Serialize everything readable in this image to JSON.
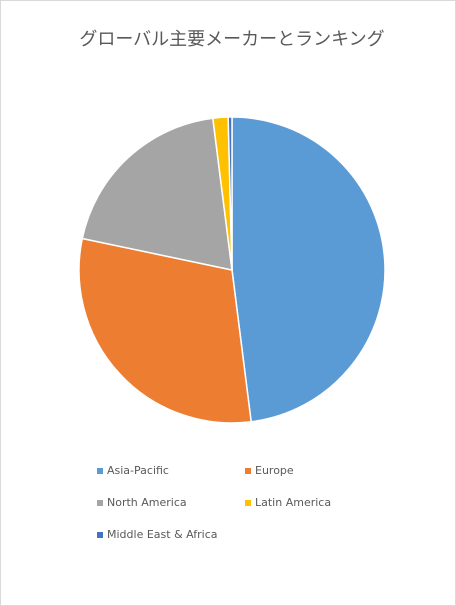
{
  "chart_data": {
    "type": "pie",
    "title": "グローバル主要メーカーとランキング",
    "categories": [
      "Asia-Pacific",
      "Europe",
      "North America",
      "Latin America",
      "Middle East & Africa"
    ],
    "values": [
      48,
      30.3,
      19.7,
      1.6,
      0.4
    ],
    "colors": [
      "#5b9bd5",
      "#ed7d31",
      "#a5a5a5",
      "#ffc000",
      "#4472c4"
    ],
    "legend": "bottom"
  }
}
